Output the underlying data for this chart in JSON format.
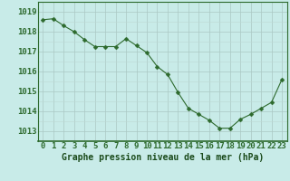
{
  "hours": [
    0,
    1,
    2,
    3,
    4,
    5,
    6,
    7,
    8,
    9,
    10,
    11,
    12,
    13,
    14,
    15,
    16,
    17,
    18,
    19,
    20,
    21,
    22,
    23
  ],
  "pressure": [
    1018.6,
    1018.65,
    1018.3,
    1018.0,
    1017.6,
    1017.25,
    1017.25,
    1017.25,
    1017.65,
    1017.3,
    1016.95,
    1016.25,
    1015.85,
    1014.95,
    1014.15,
    1013.85,
    1013.55,
    1013.15,
    1013.15,
    1013.6,
    1013.85,
    1014.15,
    1014.45,
    1015.6
  ],
  "line_color": "#2d6a2d",
  "marker_color": "#2d6a2d",
  "bg_color": "#c8ebe8",
  "grid_color_major": "#aac8c4",
  "grid_color_minor": "#bcd8d4",
  "xlabel": "Graphe pression niveau de la mer (hPa)",
  "xlabel_color": "#1a4a1a",
  "tick_color": "#2d6a2d",
  "axis_color": "#2d6a2d",
  "ylim": [
    1012.5,
    1019.5
  ],
  "yticks": [
    1013,
    1014,
    1015,
    1016,
    1017,
    1018,
    1019
  ],
  "font_size_label": 7,
  "font_size_tick": 6.5
}
